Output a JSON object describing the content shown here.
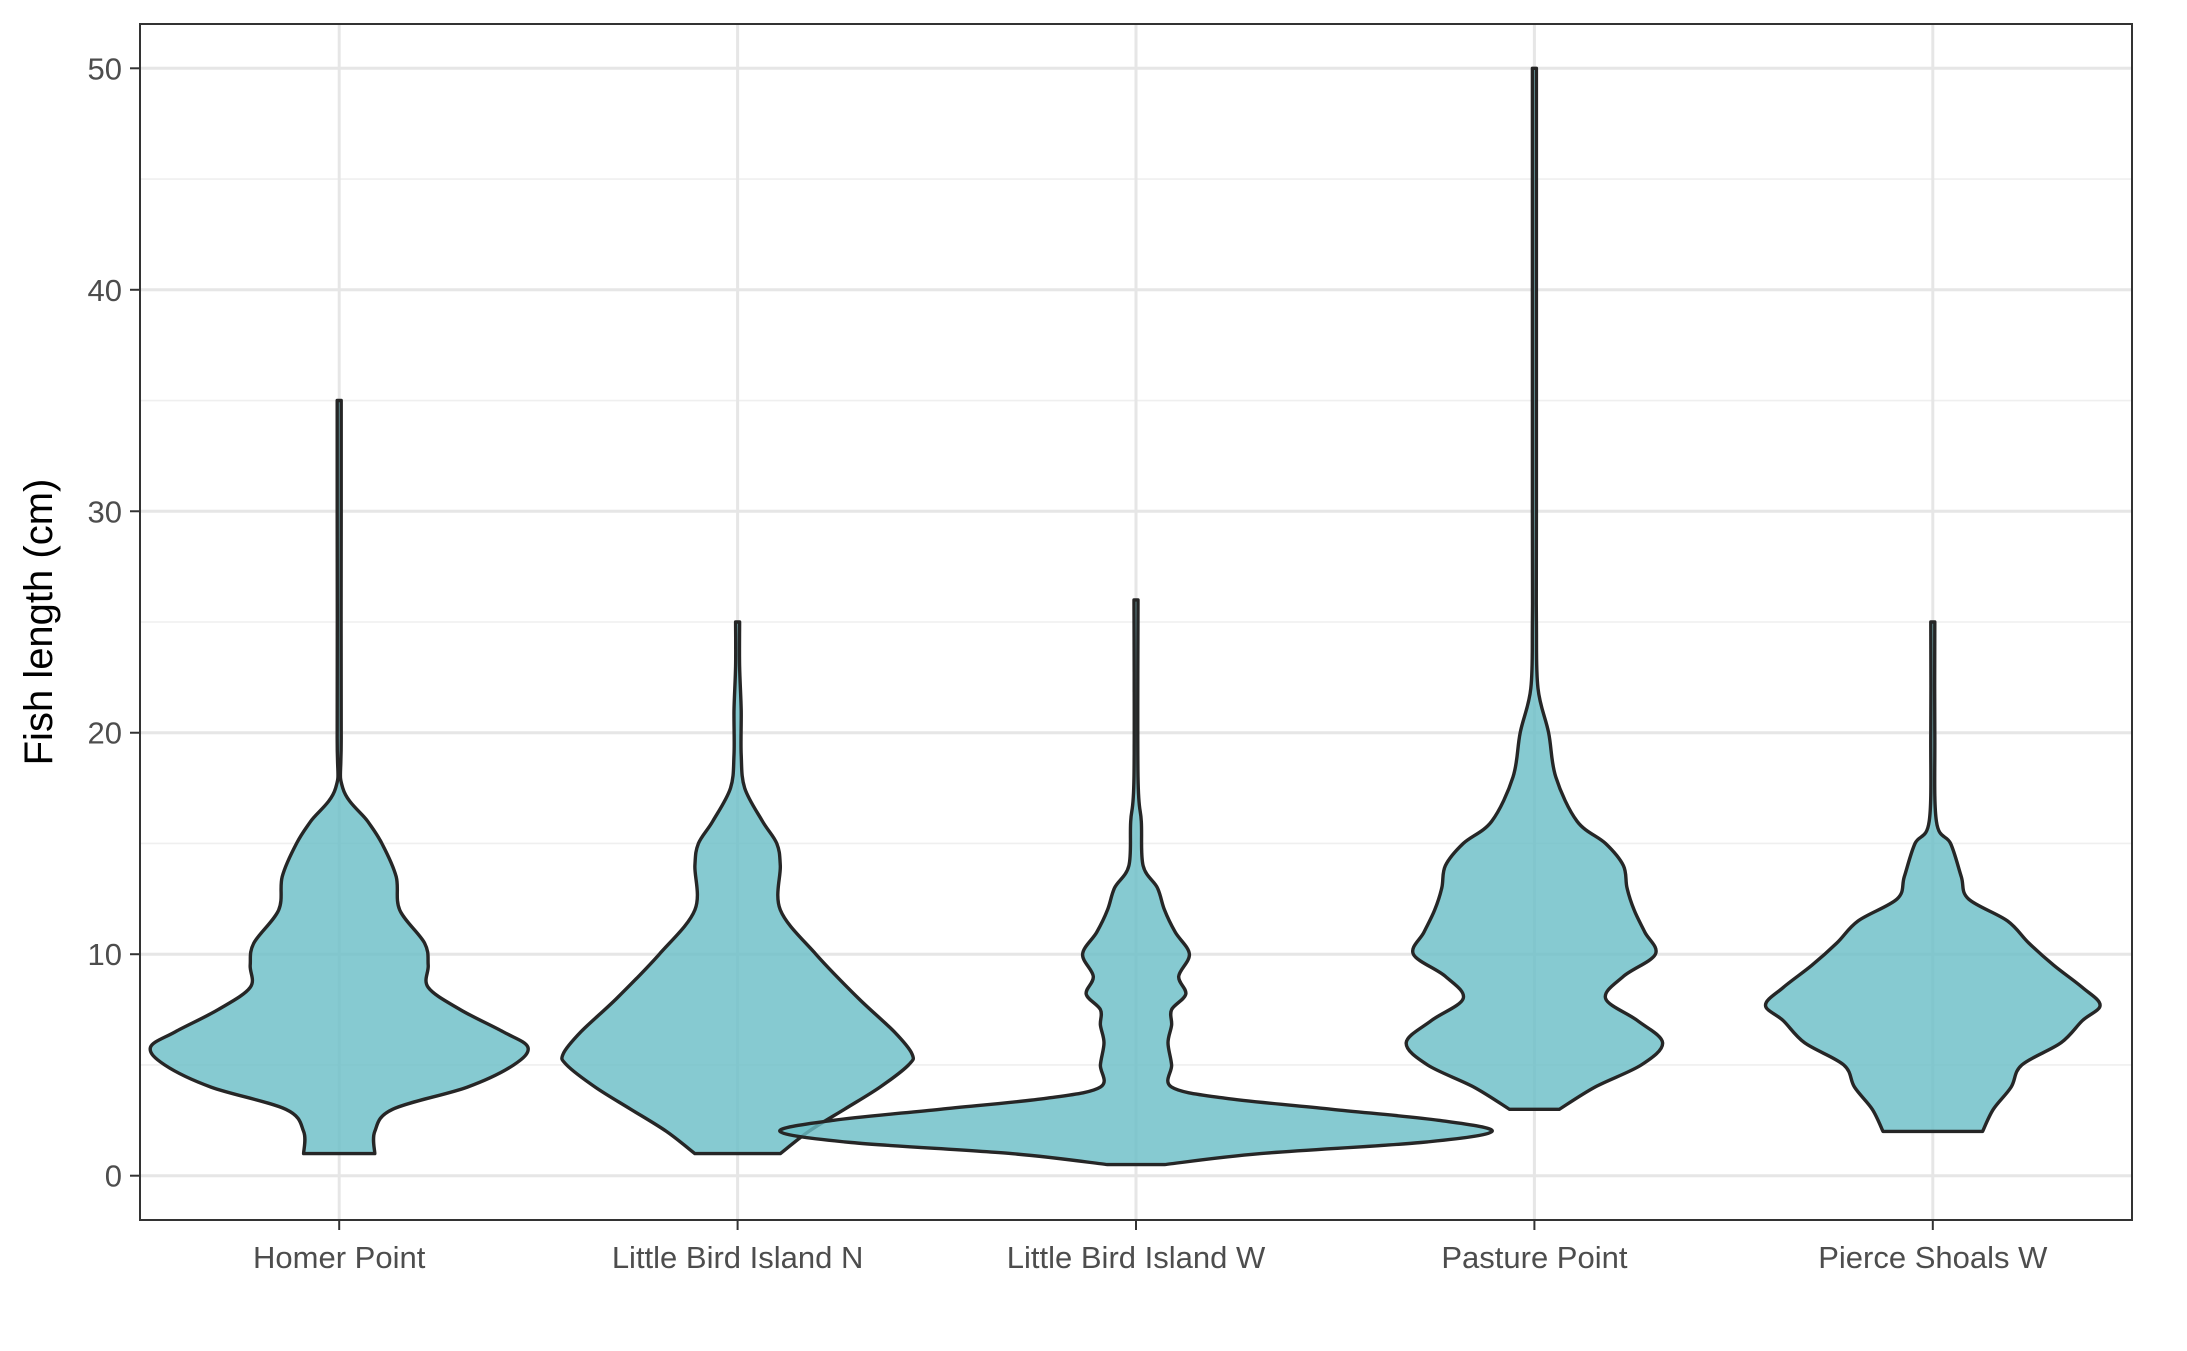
{
  "chart_data": {
    "type": "violin",
    "title": "",
    "xlabel": "",
    "ylabel": "Fish length (cm)",
    "ylim": [
      -2,
      52
    ],
    "y_ticks": [
      0,
      10,
      20,
      30,
      40,
      50
    ],
    "grid": true,
    "legend": "none",
    "fill_color": "#6bbec7",
    "outline_color": "#262626",
    "categories": [
      "Homer Point",
      "Little Bird Island N",
      "Little Bird Island W",
      "Pasture Point",
      "Pierce Shoals W"
    ],
    "series": [
      {
        "category": "Homer Point",
        "min": 1,
        "max": 35,
        "density_profile": [
          [
            1,
            1.0
          ],
          [
            2,
            1.0
          ],
          [
            3,
            1.5
          ],
          [
            4,
            3.6
          ],
          [
            5,
            4.9
          ],
          [
            5.8,
            5.3
          ],
          [
            6.5,
            4.6
          ],
          [
            7.5,
            3.4
          ],
          [
            8.5,
            2.5
          ],
          [
            9.5,
            2.5
          ],
          [
            10.5,
            2.4
          ],
          [
            12,
            1.7
          ],
          [
            13.5,
            1.6
          ],
          [
            15,
            1.2
          ],
          [
            16,
            0.8
          ],
          [
            17.5,
            0.1
          ],
          [
            20,
            0.05
          ],
          [
            30,
            0.05
          ],
          [
            35,
            0.0
          ]
        ]
      },
      {
        "category": "Little Bird Island N",
        "min": 1,
        "max": 25,
        "density_profile": [
          [
            1,
            1.2
          ],
          [
            2,
            2.0
          ],
          [
            3,
            3.0
          ],
          [
            4,
            4.0
          ],
          [
            5,
            4.8
          ],
          [
            5.5,
            4.9
          ],
          [
            6.5,
            4.4
          ],
          [
            8,
            3.4
          ],
          [
            10,
            2.2
          ],
          [
            12,
            1.2
          ],
          [
            14,
            1.2
          ],
          [
            15,
            1.1
          ],
          [
            16,
            0.7
          ],
          [
            17.5,
            0.2
          ],
          [
            19,
            0.1
          ],
          [
            21,
            0.1
          ],
          [
            23,
            0.05
          ],
          [
            25,
            0.0
          ]
        ]
      },
      {
        "category": "Little Bird Island W",
        "min": 0.5,
        "max": 26,
        "density_profile": [
          [
            0.5,
            0.8
          ],
          [
            1,
            3.5
          ],
          [
            1.5,
            8.0
          ],
          [
            2,
            10.0
          ],
          [
            2.5,
            8.5
          ],
          [
            3,
            5.5
          ],
          [
            3.5,
            2.5
          ],
          [
            4,
            1.0
          ],
          [
            5,
            1.0
          ],
          [
            6,
            0.9
          ],
          [
            6.8,
            1.0
          ],
          [
            7.5,
            1.0
          ],
          [
            8.2,
            1.4
          ],
          [
            9,
            1.2
          ],
          [
            10,
            1.5
          ],
          [
            11,
            1.1
          ],
          [
            12,
            0.8
          ],
          [
            13,
            0.6
          ],
          [
            14,
            0.2
          ],
          [
            16,
            0.15
          ],
          [
            18,
            0.05
          ],
          [
            26,
            0.0
          ]
        ]
      },
      {
        "category": "Pasture Point",
        "min": 3,
        "max": 50,
        "density_profile": [
          [
            3,
            0.7
          ],
          [
            4,
            1.7
          ],
          [
            5,
            3.0
          ],
          [
            6,
            3.6
          ],
          [
            7,
            2.9
          ],
          [
            8,
            2.0
          ],
          [
            9,
            2.5
          ],
          [
            10,
            3.4
          ],
          [
            11,
            3.1
          ],
          [
            12,
            2.8
          ],
          [
            13,
            2.6
          ],
          [
            14,
            2.5
          ],
          [
            15,
            2.0
          ],
          [
            16,
            1.2
          ],
          [
            18,
            0.6
          ],
          [
            20,
            0.4
          ],
          [
            22,
            0.1
          ],
          [
            25,
            0.05
          ],
          [
            30,
            0.05
          ],
          [
            50,
            0.0
          ]
        ]
      },
      {
        "category": "Pierce Shoals W",
        "min": 2,
        "max": 25,
        "density_profile": [
          [
            2,
            1.4
          ],
          [
            3,
            1.7
          ],
          [
            4,
            2.2
          ],
          [
            5,
            2.5
          ],
          [
            6,
            3.6
          ],
          [
            7,
            4.2
          ],
          [
            7.7,
            4.7
          ],
          [
            8.5,
            4.2
          ],
          [
            9.5,
            3.4
          ],
          [
            10.5,
            2.7
          ],
          [
            11.5,
            2.1
          ],
          [
            12.5,
            1.0
          ],
          [
            13.5,
            0.8
          ],
          [
            15,
            0.5
          ],
          [
            16,
            0.1
          ],
          [
            20,
            0.05
          ],
          [
            25,
            0.0
          ]
        ]
      }
    ]
  }
}
